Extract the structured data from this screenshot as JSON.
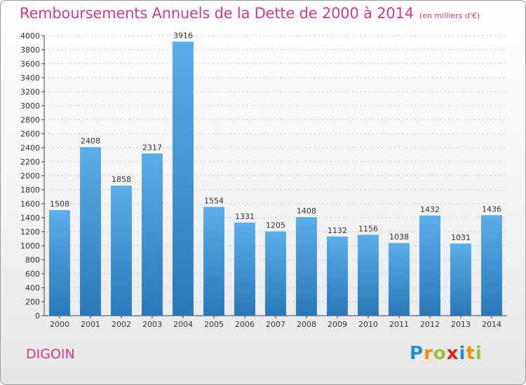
{
  "title": "Remboursements Annuels de la Dette de 2000 à 2014",
  "subtitle": "(en milliers d'€)",
  "town": "DIGOIN",
  "logo": {
    "text": "Proxiti",
    "letters": [
      {
        "ch": "P",
        "color": "#1f8fd6"
      },
      {
        "ch": "r",
        "color": "#f39200"
      },
      {
        "ch": "o",
        "color": "#9bc23c"
      },
      {
        "ch": "x",
        "color": "#e2231a"
      },
      {
        "ch": "i",
        "color": "#1f8fd6"
      },
      {
        "ch": "t",
        "color": "#f39200"
      },
      {
        "ch": "i",
        "color": "#9bc23c"
      }
    ]
  },
  "colors": {
    "accent": "#d63a86",
    "bar_top": "#5aaee9",
    "bar_bottom": "#2a78b9"
  },
  "chart_data": {
    "type": "bar",
    "title": "Remboursements Annuels de la Dette de 2000 à 2014",
    "subtitle": "(en milliers d'€)",
    "xlabel": "",
    "ylabel": "",
    "ylim": [
      0,
      4000
    ],
    "ytick_step": 200,
    "grid": true,
    "legend": "none",
    "categories": [
      "2000",
      "2001",
      "2002",
      "2003",
      "2004",
      "2005",
      "2006",
      "2007",
      "2008",
      "2009",
      "2010",
      "2011",
      "2012",
      "2013",
      "2014"
    ],
    "values": [
      1508,
      2408,
      1858,
      2317,
      3916,
      1554,
      1331,
      1205,
      1408,
      1132,
      1156,
      1038,
      1432,
      1031,
      1436
    ],
    "data_labels": [
      "1508",
      "2408",
      "1858",
      "2317",
      "3916",
      "1554",
      "1331",
      "1205",
      "1408",
      "1132",
      "1156",
      "1038",
      "1432",
      "1031",
      "1436"
    ],
    "yticks": [
      "0",
      "200",
      "400",
      "600",
      "800",
      "1000",
      "1200",
      "1400",
      "1600",
      "1800",
      "2000",
      "2200",
      "2400",
      "2600",
      "2800",
      "3000",
      "3200",
      "3400",
      "3600",
      "3800",
      "4000"
    ]
  }
}
